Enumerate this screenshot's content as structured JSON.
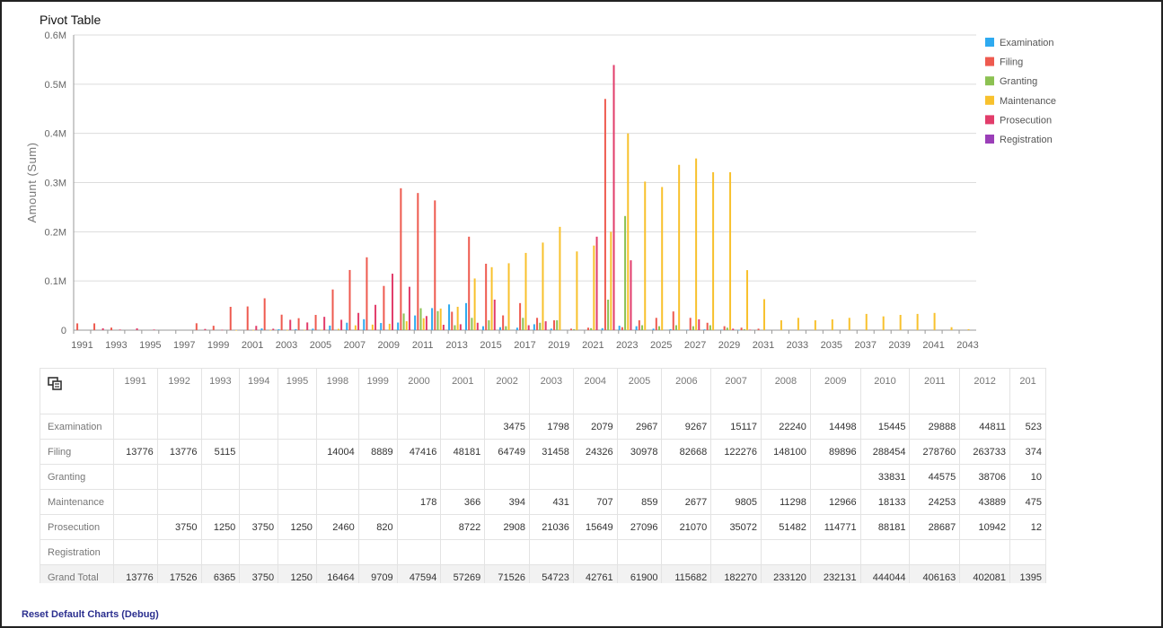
{
  "title": "Pivot Table",
  "reset_label": "Reset Default Charts (Debug)",
  "colors": {
    "Examination": "#2eaaf0",
    "Filing": "#ee5a4f",
    "Granting": "#8cc152",
    "Maintenance": "#f8c12d",
    "Prosecution": "#e23d6b",
    "Registration": "#9b3fb8"
  },
  "chart_data": {
    "type": "bar",
    "ylabel": "Amount (Sum)",
    "ylim": [
      0,
      600000
    ],
    "yticks": [
      "0",
      "0.1M",
      "0.2M",
      "0.3M",
      "0.4M",
      "0.5M",
      "0.6M"
    ],
    "xtick_labels": [
      "1991",
      "1993",
      "1995",
      "1997",
      "1999",
      "2001",
      "2003",
      "2005",
      "2007",
      "2009",
      "2011",
      "2013",
      "2015",
      "2017",
      "2019",
      "2021",
      "2023",
      "2025",
      "2027",
      "2029",
      "2031",
      "2033",
      "2035",
      "2037",
      "2039",
      "2041",
      "2043"
    ],
    "categories": [
      "1991",
      "1992",
      "1993",
      "1994",
      "1995",
      "1996",
      "1997",
      "1998",
      "1999",
      "2000",
      "2001",
      "2002",
      "2003",
      "2004",
      "2005",
      "2006",
      "2007",
      "2008",
      "2009",
      "2010",
      "2011",
      "2012",
      "2013",
      "2014",
      "2015",
      "2016",
      "2017",
      "2018",
      "2019",
      "2020",
      "2021",
      "2022",
      "2023",
      "2024",
      "2025",
      "2026",
      "2027",
      "2028",
      "2029",
      "2030",
      "2031",
      "2032",
      "2033",
      "2034",
      "2035",
      "2036",
      "2037",
      "2038",
      "2039",
      "2040",
      "2041",
      "2042",
      "2043"
    ],
    "legend_position": "top-right",
    "series": [
      {
        "name": "Examination",
        "values": [
          0,
          0,
          0,
          0,
          0,
          0,
          0,
          0,
          0,
          0,
          0,
          3475,
          1798,
          2079,
          2967,
          9267,
          15117,
          22240,
          14498,
          15445,
          29888,
          44811,
          52300,
          55000,
          8000,
          6000,
          5000,
          12000,
          3000,
          0,
          0,
          4000,
          9000,
          8000,
          3000,
          2000,
          1000,
          1500,
          1000,
          500,
          0,
          0,
          0,
          0,
          0,
          0,
          0,
          0,
          0,
          0,
          0,
          0,
          0
        ]
      },
      {
        "name": "Filing",
        "values": [
          13776,
          13776,
          5115,
          0,
          0,
          0,
          0,
          14004,
          8889,
          47416,
          48181,
          64749,
          31458,
          24326,
          30978,
          82668,
          122276,
          148100,
          89896,
          288454,
          278760,
          263733,
          37400,
          190000,
          135000,
          30000,
          55000,
          25000,
          20000,
          3000,
          5000,
          470000,
          6000,
          20000,
          25000,
          38000,
          25000,
          15000,
          8000,
          5000,
          3000,
          0,
          0,
          0,
          0,
          0,
          0,
          0,
          0,
          0,
          0,
          0,
          0
        ]
      },
      {
        "name": "Granting",
        "values": [
          0,
          0,
          0,
          0,
          0,
          0,
          0,
          0,
          0,
          0,
          0,
          0,
          0,
          0,
          0,
          0,
          0,
          0,
          0,
          33831,
          44575,
          38706,
          10000,
          25000,
          20000,
          8000,
          25000,
          15000,
          20000,
          2000,
          4000,
          62000,
          232000,
          10000,
          8000,
          10000,
          8000,
          10000,
          5000,
          2000,
          0,
          0,
          0,
          0,
          0,
          0,
          0,
          0,
          0,
          0,
          0,
          0,
          0
        ]
      },
      {
        "name": "Maintenance",
        "values": [
          0,
          0,
          0,
          0,
          0,
          0,
          0,
          0,
          0,
          178,
          366,
          394,
          431,
          707,
          859,
          2677,
          9805,
          11298,
          12966,
          18133,
          24253,
          43889,
          47500,
          105000,
          128000,
          136000,
          157000,
          178000,
          210000,
          160000,
          172000,
          200000,
          400000,
          302000,
          291000,
          336000,
          349000,
          321000,
          321000,
          122000,
          63000,
          20000,
          25000,
          20000,
          22000,
          25000,
          33000,
          28000,
          31000,
          33000,
          35000,
          6000,
          2000
        ]
      },
      {
        "name": "Prosecution",
        "values": [
          0,
          3750,
          1250,
          3750,
          1250,
          0,
          0,
          2460,
          820,
          0,
          8722,
          2908,
          21036,
          15649,
          27096,
          21070,
          35072,
          51482,
          114771,
          88181,
          28687,
          10942,
          12000,
          15000,
          62000,
          0,
          10000,
          18000,
          0,
          0,
          190000,
          539000,
          142000,
          0,
          0,
          0,
          22000,
          0,
          3000,
          1000,
          0,
          0,
          0,
          0,
          0,
          0,
          0,
          0,
          0,
          0,
          0,
          0,
          0
        ]
      },
      {
        "name": "Registration",
        "values": [
          0,
          0,
          0,
          0,
          0,
          0,
          0,
          0,
          0,
          0,
          0,
          0,
          0,
          0,
          0,
          0,
          0,
          0,
          0,
          0,
          0,
          0,
          0,
          0,
          0,
          0,
          0,
          0,
          0,
          0,
          0,
          0,
          0,
          0,
          0,
          0,
          0,
          0,
          0,
          0,
          0,
          0,
          0,
          0,
          0,
          0,
          0,
          0,
          0,
          0,
          0,
          0,
          0
        ]
      }
    ]
  },
  "table": {
    "columns": [
      "1991",
      "1992",
      "1993",
      "1994",
      "1995",
      "1998",
      "1999",
      "2000",
      "2001",
      "2002",
      "2003",
      "2004",
      "2005",
      "2006",
      "2007",
      "2008",
      "2009",
      "2010",
      "2011",
      "2012",
      "201"
    ],
    "rows": [
      {
        "label": "Examination",
        "values": [
          "",
          "",
          "",
          "",
          "",
          "",
          "",
          "",
          "",
          "3475",
          "1798",
          "2079",
          "2967",
          "9267",
          "15117",
          "22240",
          "14498",
          "15445",
          "29888",
          "44811",
          "523"
        ]
      },
      {
        "label": "Filing",
        "values": [
          "13776",
          "13776",
          "5115",
          "",
          "",
          "14004",
          "8889",
          "47416",
          "48181",
          "64749",
          "31458",
          "24326",
          "30978",
          "82668",
          "122276",
          "148100",
          "89896",
          "288454",
          "278760",
          "263733",
          "374"
        ]
      },
      {
        "label": "Granting",
        "values": [
          "",
          "",
          "",
          "",
          "",
          "",
          "",
          "",
          "",
          "",
          "",
          "",
          "",
          "",
          "",
          "",
          "",
          "33831",
          "44575",
          "38706",
          "10"
        ]
      },
      {
        "label": "Maintenance",
        "values": [
          "",
          "",
          "",
          "",
          "",
          "",
          "",
          "178",
          "366",
          "394",
          "431",
          "707",
          "859",
          "2677",
          "9805",
          "11298",
          "12966",
          "18133",
          "24253",
          "43889",
          "475"
        ]
      },
      {
        "label": "Prosecution",
        "values": [
          "",
          "3750",
          "1250",
          "3750",
          "1250",
          "2460",
          "820",
          "",
          "8722",
          "2908",
          "21036",
          "15649",
          "27096",
          "21070",
          "35072",
          "51482",
          "114771",
          "88181",
          "28687",
          "10942",
          "12"
        ]
      },
      {
        "label": "Registration",
        "values": [
          "",
          "",
          "",
          "",
          "",
          "",
          "",
          "",
          "",
          "",
          "",
          "",
          "",
          "",
          "",
          "",
          "",
          "",
          "",
          "",
          ""
        ]
      }
    ],
    "total": {
      "label": "Grand Total",
      "values": [
        "13776",
        "17526",
        "6365",
        "3750",
        "1250",
        "16464",
        "9709",
        "47594",
        "57269",
        "71526",
        "54723",
        "42761",
        "61900",
        "115682",
        "182270",
        "233120",
        "232131",
        "444044",
        "406163",
        "402081",
        "1395"
      ]
    }
  }
}
